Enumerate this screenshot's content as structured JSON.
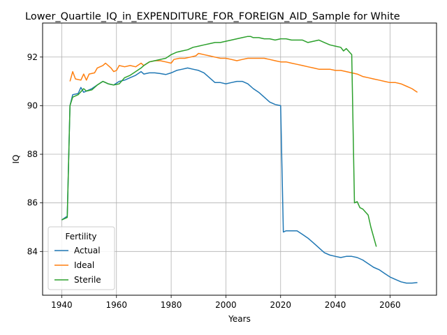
{
  "chart_data": {
    "type": "line",
    "title": "Lower_Quartile_IQ_in_EXPENDITURE_FOR_FOREIGN_AID_Sample for White",
    "xlabel": "Years",
    "ylabel": "IQ",
    "xlim": [
      1933,
      2077
    ],
    "ylim": [
      82.2,
      93.4
    ],
    "xticks": [
      1940,
      1960,
      1980,
      2000,
      2020,
      2040,
      2060
    ],
    "yticks": [
      84,
      86,
      88,
      90,
      92
    ],
    "grid": true,
    "legend": {
      "title": "Fertility",
      "position": "lower-left"
    },
    "series": [
      {
        "name": "Actual",
        "color": "#1f77b4",
        "x": [
          1940,
          1942,
          1943,
          1944,
          1946,
          1947,
          1948,
          1949,
          1951,
          1953,
          1955,
          1957,
          1959,
          1961,
          1963,
          1965,
          1967,
          1969,
          1970,
          1972,
          1974,
          1976,
          1978,
          1980,
          1982,
          1984,
          1986,
          1988,
          1990,
          1992,
          1994,
          1996,
          1998,
          2000,
          2002,
          2004,
          2006,
          2008,
          2010,
          2012,
          2014,
          2016,
          2018,
          2020,
          2021,
          2022,
          2024,
          2026,
          2028,
          2030,
          2032,
          2034,
          2036,
          2038,
          2040,
          2042,
          2044,
          2046,
          2048,
          2050,
          2052,
          2054,
          2056,
          2058,
          2060,
          2062,
          2064,
          2066,
          2068,
          2070
        ],
        "y": [
          85.3,
          85.45,
          90.0,
          90.45,
          90.5,
          90.75,
          90.55,
          90.6,
          90.7,
          90.85,
          91.0,
          90.9,
          90.85,
          91.0,
          91.05,
          91.15,
          91.25,
          91.4,
          91.3,
          91.35,
          91.35,
          91.32,
          91.28,
          91.35,
          91.45,
          91.5,
          91.55,
          91.5,
          91.45,
          91.35,
          91.15,
          90.95,
          90.95,
          90.9,
          90.95,
          91.0,
          91.0,
          90.9,
          90.7,
          90.55,
          90.35,
          90.15,
          90.05,
          90.0,
          84.8,
          84.85,
          84.85,
          84.85,
          84.7,
          84.55,
          84.35,
          84.15,
          83.95,
          83.85,
          83.8,
          83.75,
          83.8,
          83.8,
          83.75,
          83.65,
          83.5,
          83.35,
          83.25,
          83.1,
          82.95,
          82.85,
          82.75,
          82.7,
          82.7,
          82.72
        ]
      },
      {
        "name": "Ideal",
        "color": "#ff7f0e",
        "x": [
          1943,
          1944,
          1945,
          1947,
          1948,
          1949,
          1950,
          1952,
          1953,
          1955,
          1956,
          1958,
          1959,
          1960,
          1961,
          1963,
          1965,
          1967,
          1969,
          1970,
          1972,
          1974,
          1976,
          1978,
          1980,
          1981,
          1983,
          1985,
          1987,
          1989,
          1990,
          1992,
          1994,
          1996,
          1998,
          2000,
          2002,
          2004,
          2006,
          2008,
          2010,
          2012,
          2014,
          2016,
          2018,
          2020,
          2022,
          2024,
          2026,
          2028,
          2030,
          2032,
          2034,
          2036,
          2038,
          2040,
          2042,
          2044,
          2046,
          2048,
          2050,
          2052,
          2054,
          2056,
          2058,
          2060,
          2062,
          2064,
          2066,
          2068,
          2070
        ],
        "y": [
          91.0,
          91.4,
          91.1,
          91.05,
          91.3,
          91.05,
          91.3,
          91.35,
          91.55,
          91.65,
          91.75,
          91.55,
          91.4,
          91.45,
          91.65,
          91.6,
          91.65,
          91.6,
          91.75,
          91.65,
          91.8,
          91.85,
          91.85,
          91.8,
          91.75,
          91.9,
          91.95,
          91.95,
          92.0,
          92.05,
          92.15,
          92.1,
          92.05,
          92.0,
          91.95,
          91.95,
          91.9,
          91.85,
          91.9,
          91.95,
          91.95,
          91.95,
          91.95,
          91.9,
          91.85,
          91.8,
          91.8,
          91.75,
          91.7,
          91.65,
          91.6,
          91.55,
          91.5,
          91.5,
          91.5,
          91.45,
          91.45,
          91.4,
          91.35,
          91.3,
          91.2,
          91.15,
          91.1,
          91.05,
          91.0,
          90.95,
          90.95,
          90.9,
          90.8,
          90.7,
          90.55
        ]
      },
      {
        "name": "Sterile",
        "color": "#2ca02c",
        "x": [
          1940,
          1942,
          1943,
          1944,
          1946,
          1948,
          1949,
          1951,
          1953,
          1955,
          1957,
          1959,
          1961,
          1963,
          1965,
          1967,
          1969,
          1970,
          1972,
          1974,
          1976,
          1978,
          1980,
          1982,
          1984,
          1986,
          1988,
          1990,
          1992,
          1994,
          1996,
          1998,
          2000,
          2002,
          2004,
          2006,
          2008,
          2009,
          2010,
          2012,
          2014,
          2016,
          2018,
          2020,
          2022,
          2024,
          2026,
          2028,
          2030,
          2032,
          2034,
          2036,
          2038,
          2040,
          2042,
          2043,
          2044,
          2046,
          2047,
          2048,
          2049,
          2050,
          2052,
          2053,
          2055
        ],
        "y": [
          85.3,
          85.4,
          90.0,
          90.35,
          90.45,
          90.7,
          90.6,
          90.65,
          90.85,
          91.0,
          90.9,
          90.85,
          90.9,
          91.15,
          91.25,
          91.4,
          91.55,
          91.65,
          91.8,
          91.85,
          91.9,
          91.95,
          92.1,
          92.2,
          92.25,
          92.3,
          92.4,
          92.45,
          92.5,
          92.55,
          92.6,
          92.6,
          92.65,
          92.7,
          92.75,
          92.8,
          92.85,
          92.85,
          92.8,
          92.8,
          92.75,
          92.75,
          92.7,
          92.75,
          92.75,
          92.7,
          92.7,
          92.7,
          92.6,
          92.65,
          92.7,
          92.6,
          92.5,
          92.45,
          92.4,
          92.25,
          92.35,
          92.1,
          86.0,
          86.05,
          85.8,
          85.75,
          85.5,
          85.0,
          84.2
        ]
      }
    ]
  }
}
